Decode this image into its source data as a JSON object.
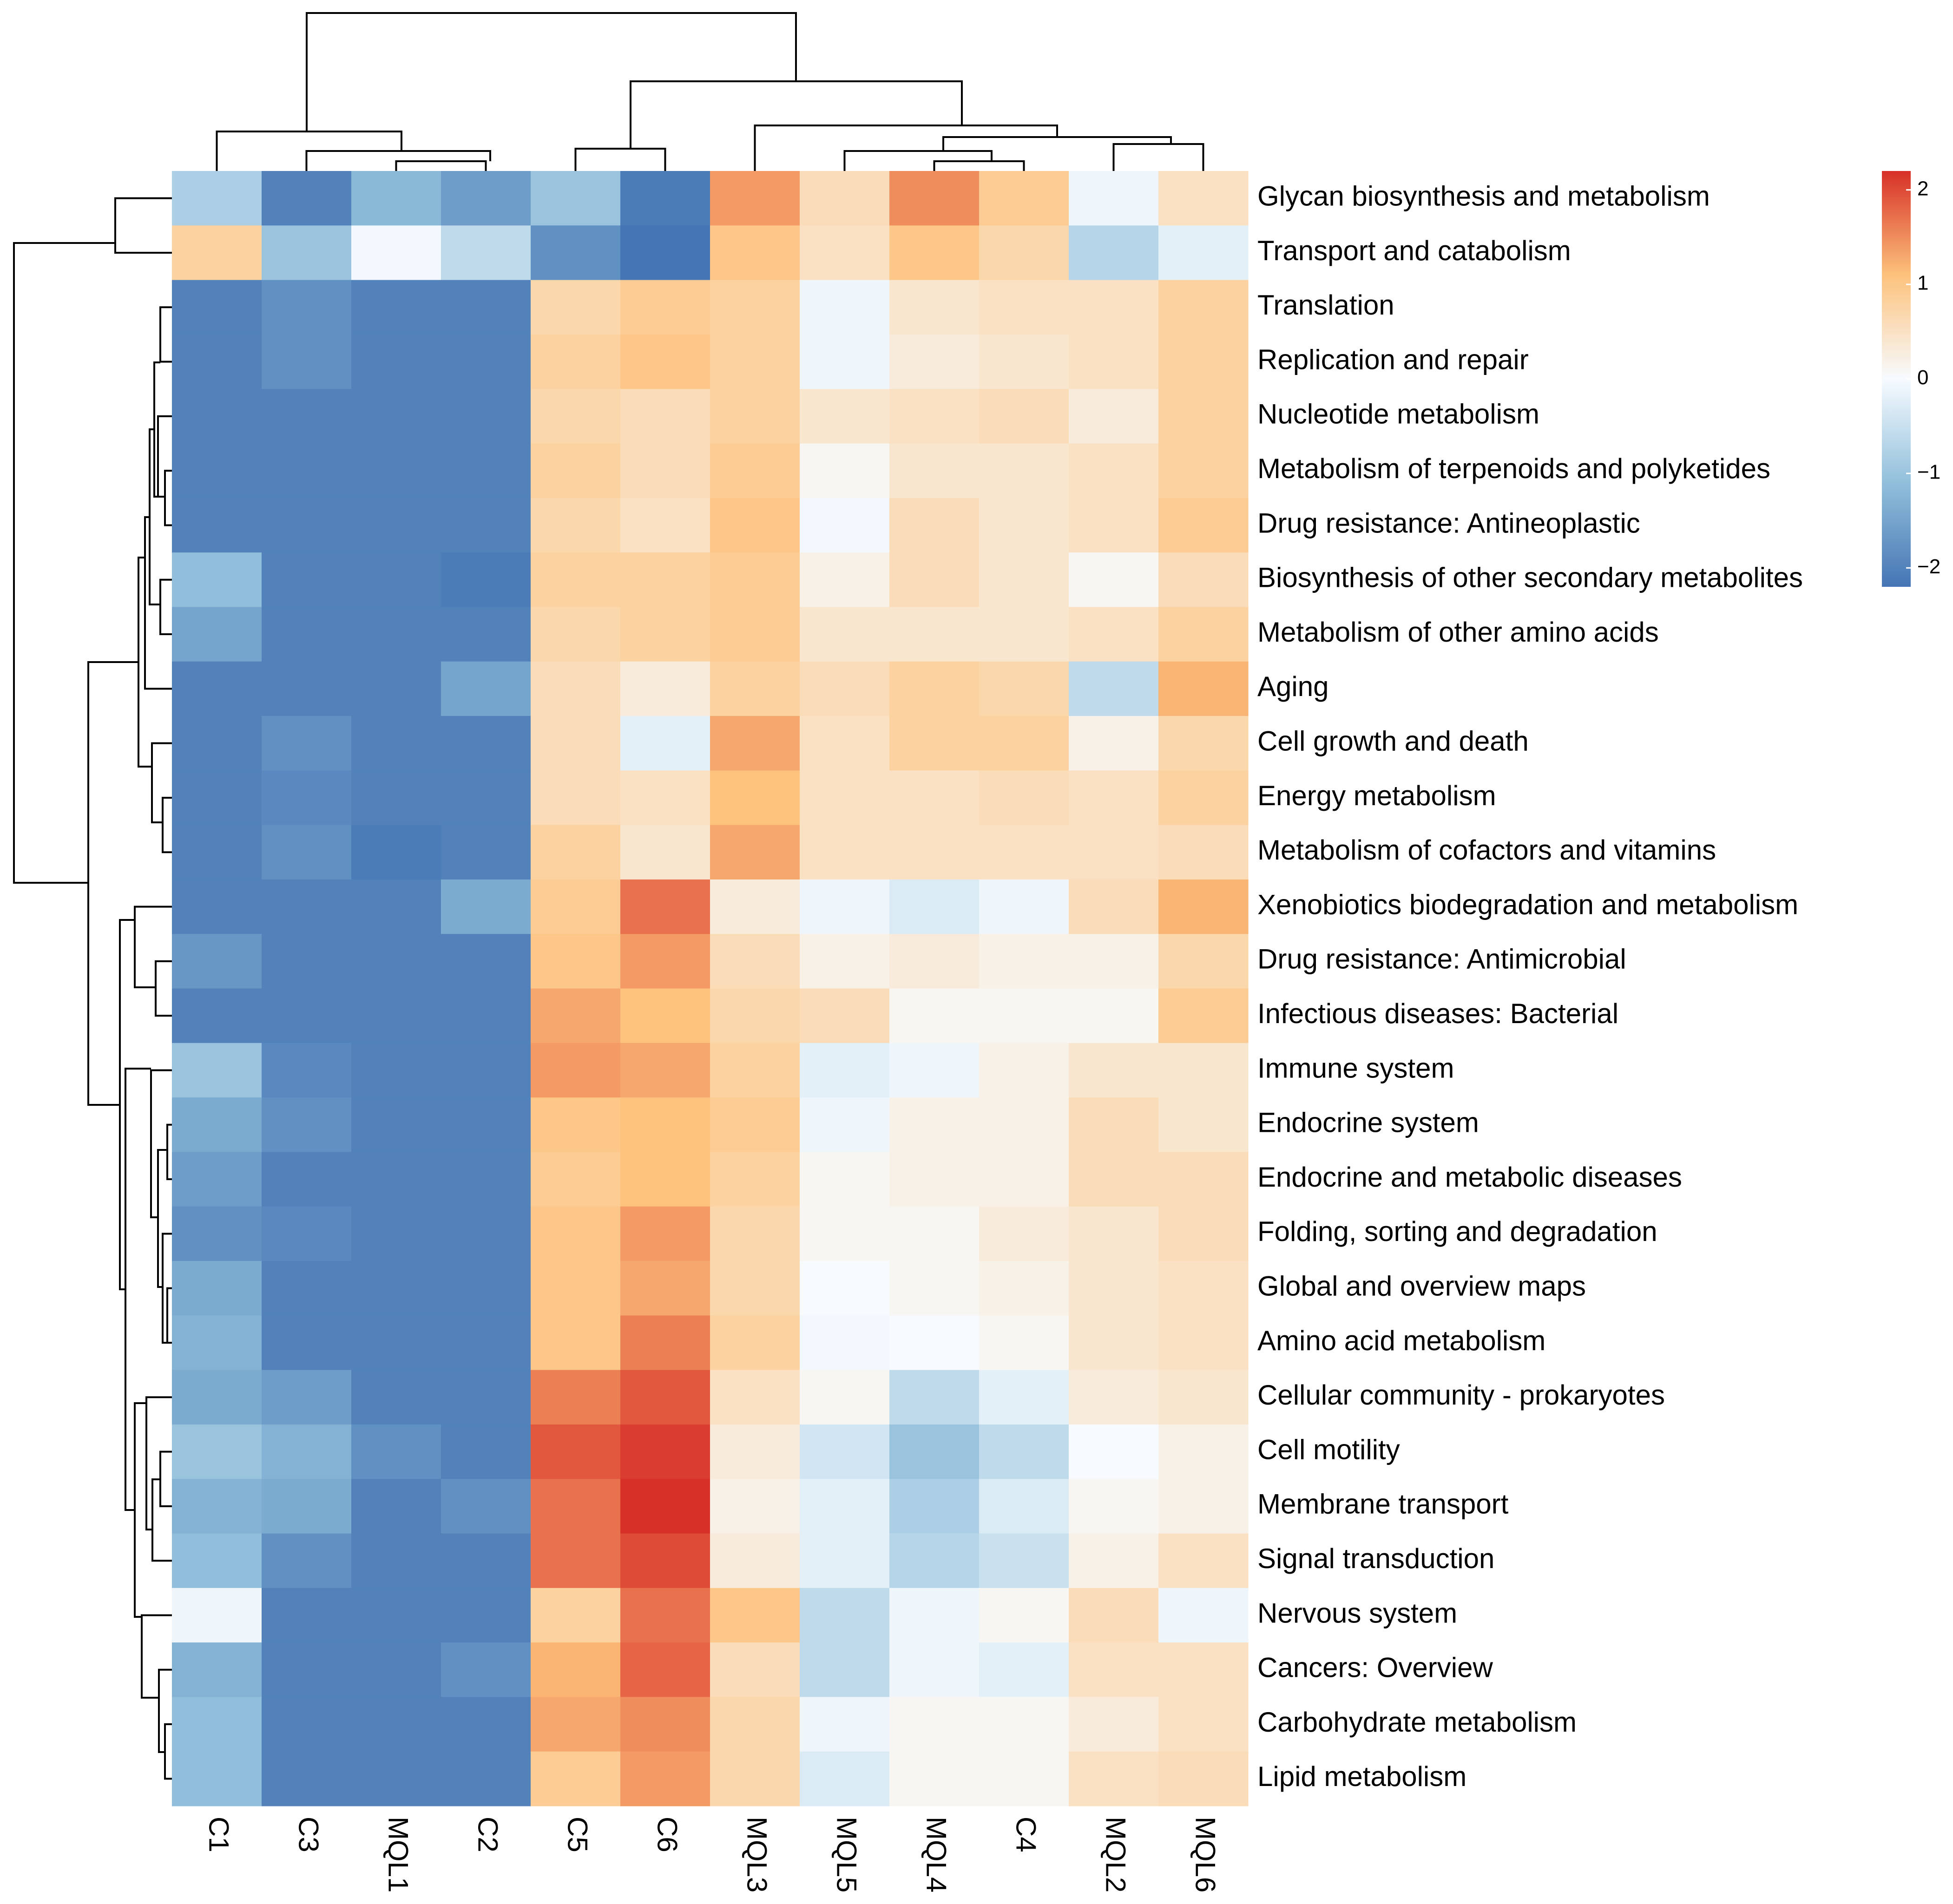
{
  "chart_data": {
    "type": "heatmap",
    "title": "",
    "columns": [
      "C1",
      "C3",
      "MQL1",
      "C2",
      "C5",
      "C6",
      "MQL3",
      "MQL5",
      "MQL4",
      "C4",
      "MQL2",
      "MQL6"
    ],
    "rows": [
      "Glycan biosynthesis and metabolism",
      "Transport and catabolism",
      "Translation",
      "Replication and repair",
      "Nucleotide metabolism",
      "Metabolism of terpenoids and polyketides",
      "Drug resistance: Antineoplastic",
      "Biosynthesis of other secondary metabolites",
      "Metabolism of other amino acids",
      "Aging",
      "Cell growth and death",
      "Energy metabolism",
      "Metabolism of cofactors and vitamins",
      "Xenobiotics biodegradation and metabolism",
      "Drug resistance: Antimicrobial",
      "Infectious diseases: Bacterial",
      "Immune system",
      "Endocrine system",
      "Endocrine and metabolic diseases",
      "Folding, sorting and degradation",
      "Global and overview maps",
      "Amino acid metabolism",
      "Cellular community - prokaryotes",
      "Cell motility",
      "Membrane transport",
      "Signal transduction",
      "Nervous system",
      "Cancers: Overview",
      "Carbohydrate metabolism",
      "Lipid metabolism"
    ],
    "values": [
      [
        -0.8,
        -2.0,
        -1.2,
        -1.6,
        -1.0,
        -2.1,
        1.4,
        0.6,
        1.5,
        0.9,
        -0.1,
        0.5
      ],
      [
        0.8,
        -1.0,
        -0.05,
        -0.6,
        -1.8,
        -2.2,
        1.0,
        0.5,
        1.0,
        0.7,
        -0.7,
        -0.2
      ],
      [
        -2.0,
        -1.8,
        -2.0,
        -2.0,
        0.7,
        0.9,
        0.8,
        -0.1,
        0.4,
        0.5,
        0.5,
        0.8
      ],
      [
        -2.0,
        -1.8,
        -2.0,
        -2.0,
        0.8,
        1.0,
        0.8,
        -0.1,
        0.3,
        0.4,
        0.5,
        0.8
      ],
      [
        -2.0,
        -2.0,
        -2.0,
        -2.0,
        0.7,
        0.6,
        0.8,
        0.4,
        0.5,
        0.6,
        0.3,
        0.8
      ],
      [
        -2.0,
        -2.0,
        -2.0,
        -2.0,
        0.8,
        0.6,
        0.9,
        0.1,
        0.4,
        0.4,
        0.5,
        0.8
      ],
      [
        -2.0,
        -2.0,
        -2.0,
        -2.0,
        0.7,
        0.5,
        1.0,
        -0.05,
        0.6,
        0.4,
        0.5,
        0.9
      ],
      [
        -1.1,
        -2.0,
        -2.0,
        -2.1,
        0.8,
        0.8,
        0.9,
        0.2,
        0.6,
        0.4,
        0.1,
        0.6
      ],
      [
        -1.5,
        -2.0,
        -2.0,
        -2.0,
        0.7,
        0.8,
        0.9,
        0.4,
        0.4,
        0.4,
        0.5,
        0.8
      ],
      [
        -2.0,
        -2.0,
        -2.0,
        -1.5,
        0.6,
        0.3,
        0.8,
        0.6,
        0.8,
        0.7,
        -0.6,
        1.2
      ],
      [
        -2.0,
        -1.8,
        -2.0,
        -2.0,
        0.6,
        -0.2,
        1.3,
        0.5,
        0.8,
        0.8,
        0.2,
        0.7
      ],
      [
        -2.0,
        -1.9,
        -2.0,
        -2.0,
        0.6,
        0.5,
        1.1,
        0.5,
        0.5,
        0.6,
        0.5,
        0.8
      ],
      [
        -2.0,
        -1.8,
        -2.1,
        -2.0,
        0.8,
        0.4,
        1.3,
        0.5,
        0.5,
        0.5,
        0.5,
        0.6
      ],
      [
        -2.0,
        -2.0,
        -2.0,
        -1.4,
        0.9,
        1.7,
        0.3,
        -0.1,
        -0.3,
        -0.1,
        0.6,
        1.2
      ],
      [
        -1.7,
        -2.0,
        -2.0,
        -2.0,
        1.0,
        1.4,
        0.6,
        0.2,
        0.3,
        0.2,
        0.2,
        0.7
      ],
      [
        -2.0,
        -2.0,
        -2.0,
        -2.0,
        1.3,
        1.1,
        0.7,
        0.6,
        0.1,
        0.1,
        0.1,
        0.9
      ],
      [
        -1.0,
        -1.9,
        -2.0,
        -2.0,
        1.4,
        1.3,
        0.8,
        -0.2,
        -0.1,
        0.2,
        0.4,
        0.4
      ],
      [
        -1.4,
        -1.8,
        -2.0,
        -2.0,
        1.0,
        1.1,
        0.9,
        -0.1,
        0.2,
        0.2,
        0.6,
        0.4
      ],
      [
        -1.6,
        -2.0,
        -2.0,
        -2.0,
        0.9,
        1.1,
        0.8,
        0.1,
        0.2,
        0.2,
        0.6,
        0.6
      ],
      [
        -1.8,
        -1.9,
        -2.0,
        -2.0,
        1.0,
        1.4,
        0.7,
        0.1,
        0.1,
        0.3,
        0.4,
        0.6
      ],
      [
        -1.4,
        -2.0,
        -2.0,
        -2.0,
        1.0,
        1.3,
        0.7,
        0.0,
        0.1,
        0.2,
        0.4,
        0.5
      ],
      [
        -1.3,
        -2.0,
        -2.0,
        -2.0,
        1.0,
        1.6,
        0.8,
        -0.05,
        0.0,
        0.1,
        0.4,
        0.5
      ],
      [
        -1.4,
        -1.6,
        -2.0,
        -2.0,
        1.6,
        1.9,
        0.5,
        0.1,
        -0.6,
        -0.2,
        0.3,
        0.4
      ],
      [
        -1.0,
        -1.3,
        -1.8,
        -2.0,
        1.9,
        2.1,
        0.3,
        -0.4,
        -1.0,
        -0.6,
        0.0,
        0.2
      ],
      [
        -1.3,
        -1.4,
        -2.0,
        -1.8,
        1.7,
        2.2,
        0.2,
        -0.2,
        -0.8,
        -0.3,
        0.1,
        0.2
      ],
      [
        -1.1,
        -1.8,
        -2.0,
        -2.0,
        1.7,
        2.0,
        0.3,
        -0.2,
        -0.7,
        -0.5,
        0.2,
        0.5
      ],
      [
        -0.1,
        -2.0,
        -2.0,
        -2.0,
        0.8,
        1.7,
        1.0,
        -0.6,
        -0.1,
        0.1,
        0.6,
        -0.1
      ],
      [
        -1.3,
        -2.0,
        -2.0,
        -1.8,
        1.2,
        1.8,
        0.6,
        -0.6,
        -0.1,
        -0.2,
        0.5,
        0.5
      ],
      [
        -1.1,
        -2.0,
        -2.0,
        -2.0,
        1.3,
        1.5,
        0.7,
        -0.1,
        0.1,
        0.1,
        0.3,
        0.5
      ],
      [
        -1.1,
        -2.0,
        -2.0,
        -2.0,
        0.9,
        1.4,
        0.7,
        -0.3,
        0.1,
        0.1,
        0.5,
        0.6
      ]
    ],
    "color_scale": {
      "min": -2.2,
      "max": 2.2,
      "low_color": "#4575b4",
      "mid_color": "#ffffff",
      "high_color": "#d73027",
      "stops": [
        {
          "value": -2.2,
          "color": "#4575b4"
        },
        {
          "value": -1.1,
          "color": "#91bfdb"
        },
        {
          "value": 0.0,
          "color": "#f7fbff"
        },
        {
          "value": 1.1,
          "color": "#fdc27c"
        },
        {
          "value": 2.2,
          "color": "#d73027"
        }
      ]
    },
    "legend": {
      "position": "top-right",
      "ticks": [
        2,
        1,
        0,
        -1,
        -2
      ],
      "tick_labels": [
        "2",
        "1",
        "0",
        "−1",
        "−2"
      ]
    },
    "row_dendrogram": true,
    "column_dendrogram": true
  }
}
